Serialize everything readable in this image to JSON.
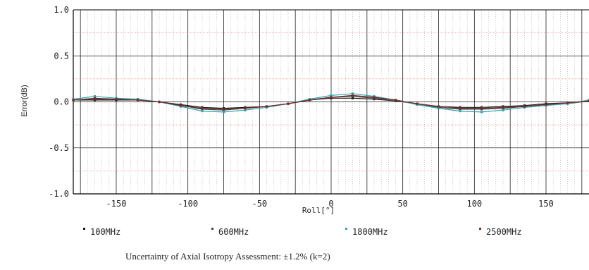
{
  "chart_data": {
    "type": "line",
    "title": "",
    "xlabel": "Roll[°]",
    "ylabel": "Error(dB)",
    "xlim": [
      -180,
      180
    ],
    "ylim": [
      -1.0,
      1.0
    ],
    "xticks": [
      -150,
      -100,
      -50,
      0,
      50,
      100,
      150
    ],
    "xtick_labels": [
      "-150",
      "-100",
      "-50",
      "0",
      "50",
      "100",
      "150"
    ],
    "yticks": [
      1.0,
      0.5,
      0.0,
      -0.5,
      -1.0
    ],
    "ytick_labels": [
      "1.0",
      "0.5",
      "0.0",
      "-0.5",
      "-1.0"
    ],
    "y_minor_gridlines": [
      0.75,
      0.25,
      -0.25,
      -0.75
    ],
    "grid": true,
    "legend_position": "bottom",
    "x": [
      -180,
      -165,
      -150,
      -135,
      -120,
      -105,
      -90,
      -75,
      -60,
      -45,
      -30,
      -15,
      0,
      15,
      30,
      45,
      60,
      75,
      90,
      105,
      120,
      135,
      150,
      165,
      180
    ],
    "series": [
      {
        "name": "100MHz",
        "color": "#1a1a1a",
        "values": [
          0.02,
          0.02,
          0.02,
          0.02,
          0.0,
          -0.03,
          -0.06,
          -0.07,
          -0.06,
          -0.05,
          -0.02,
          0.02,
          0.04,
          0.04,
          0.03,
          0.01,
          -0.02,
          -0.05,
          -0.06,
          -0.06,
          -0.05,
          -0.04,
          -0.02,
          -0.01,
          0.01
        ]
      },
      {
        "name": "600MHz",
        "color": "#444444",
        "values": [
          0.02,
          0.03,
          0.03,
          0.02,
          0.0,
          -0.04,
          -0.08,
          -0.09,
          -0.07,
          -0.05,
          -0.02,
          0.02,
          0.05,
          0.06,
          0.04,
          0.01,
          -0.02,
          -0.06,
          -0.08,
          -0.08,
          -0.07,
          -0.05,
          -0.03,
          -0.02,
          0.01
        ]
      },
      {
        "name": "1800MHz",
        "color": "#2aa7b0",
        "values": [
          0.03,
          0.06,
          0.04,
          0.03,
          0.0,
          -0.05,
          -0.1,
          -0.11,
          -0.09,
          -0.06,
          -0.02,
          0.03,
          0.07,
          0.09,
          0.06,
          0.02,
          -0.03,
          -0.07,
          -0.1,
          -0.11,
          -0.09,
          -0.06,
          -0.04,
          -0.02,
          0.02
        ]
      },
      {
        "name": "2500MHz",
        "color": "#7a2a2a",
        "values": [
          0.02,
          0.04,
          0.03,
          0.02,
          0.0,
          -0.04,
          -0.07,
          -0.08,
          -0.07,
          -0.05,
          -0.02,
          0.02,
          0.05,
          0.07,
          0.05,
          0.02,
          -0.02,
          -0.05,
          -0.07,
          -0.07,
          -0.06,
          -0.05,
          -0.03,
          -0.01,
          0.01
        ]
      }
    ],
    "colors": {
      "grid_major": "#222222",
      "grid_minor_v": "#9a9a9a",
      "grid_minor_h": "#e06060"
    }
  },
  "caption": "Uncertainty of Axial Isotropy Assessment: ±1.2% (k=2)"
}
